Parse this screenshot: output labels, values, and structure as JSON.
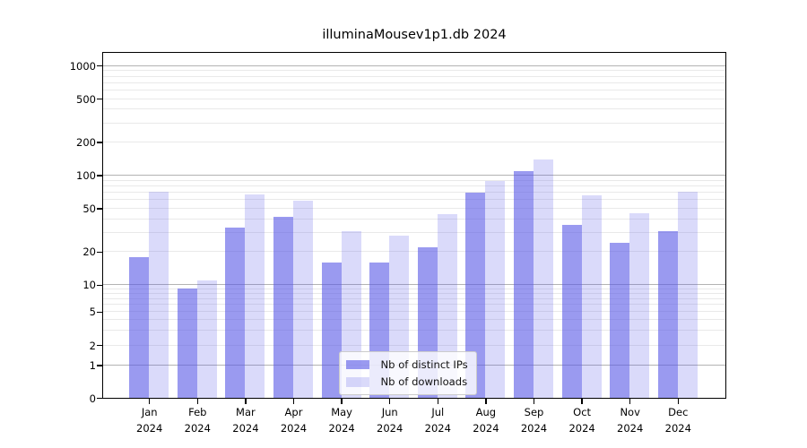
{
  "figure": {
    "background": "#ffffff"
  },
  "chart_data": {
    "type": "bar",
    "title": "illuminaMousev1p1.db 2024",
    "categories": [
      "Jan",
      "Feb",
      "Mar",
      "Apr",
      "May",
      "Jun",
      "Jul",
      "Aug",
      "Sep",
      "Oct",
      "Nov",
      "Dec"
    ],
    "x_tick_second_line": "2024",
    "series": [
      {
        "name": "Nb of distinct IPs",
        "color": "rgba(87,87,230,0.6)",
        "values": [
          18,
          9,
          33,
          42,
          16,
          16,
          22,
          69,
          108,
          35,
          24,
          31
        ]
      },
      {
        "name": "Nb of downloads",
        "color": "rgba(87,87,230,0.22)",
        "values": [
          71,
          11,
          67,
          58,
          31,
          28,
          44,
          88,
          138,
          66,
          45,
          70
        ]
      }
    ],
    "yscale": "symlog",
    "yticks": [
      0,
      1,
      2,
      5,
      10,
      20,
      50,
      100,
      200,
      500,
      1000
    ],
    "ylim": [
      0,
      1300
    ],
    "xlabel": "",
    "ylabel": "",
    "grid": true,
    "legend_position": "lower center",
    "axis_color": "#000000",
    "major_grid_color": "#b3b3b3",
    "minor_grid_color": "#e9e9e9"
  }
}
